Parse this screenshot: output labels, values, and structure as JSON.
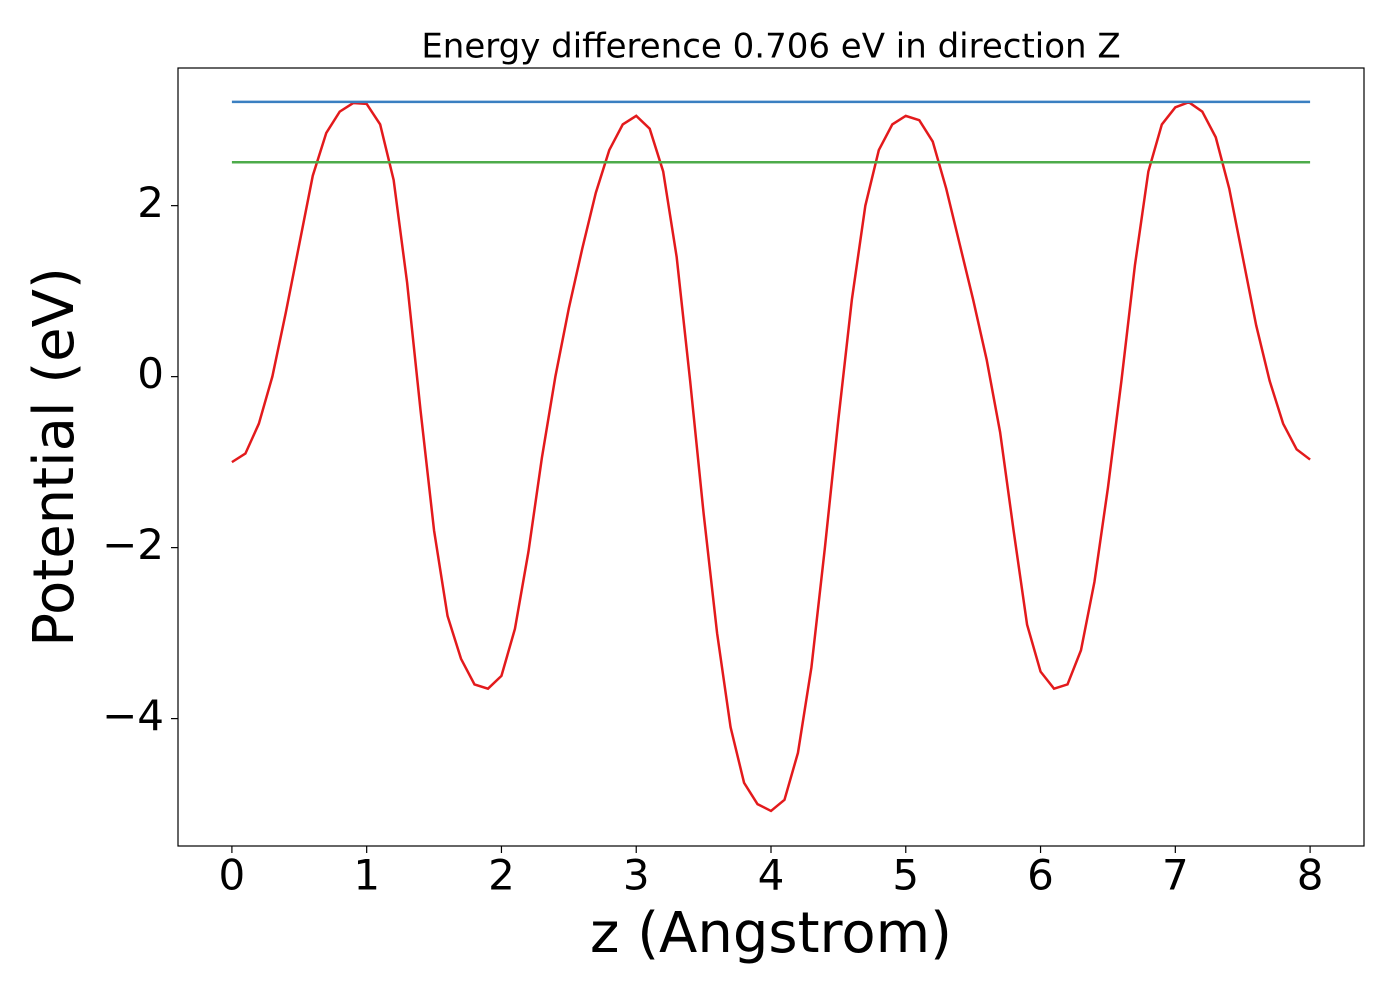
{
  "chart_data": {
    "type": "line",
    "title": "Energy difference 0.706 eV in direction Z",
    "x_label": "z (Angstrom)",
    "y_label": "Potential (eV)",
    "xlim": [
      -0.4,
      8.4
    ],
    "ylim": [
      -5.49,
      3.61
    ],
    "xticks": [
      0,
      1,
      2,
      3,
      4,
      5,
      6,
      7,
      8
    ],
    "yticks": [
      {
        "value": -4,
        "label": "−4"
      },
      {
        "value": -2,
        "label": "−2"
      },
      0,
      2
    ],
    "series": [
      {
        "color": "#e31a1c",
        "x": [
          0,
          0.1,
          0.2,
          0.3,
          0.4,
          0.5,
          0.6,
          0.7,
          0.8,
          0.9,
          1.0,
          1.1,
          1.2,
          1.3,
          1.4,
          1.5,
          1.6,
          1.7,
          1.8,
          1.9,
          2.0,
          2.1,
          2.2,
          2.3,
          2.4,
          2.5,
          2.6,
          2.7,
          2.8,
          2.9,
          3.0,
          3.1,
          3.2,
          3.3,
          3.4,
          3.5,
          3.6,
          3.7,
          3.8,
          3.9,
          4.0,
          4.1,
          4.2,
          4.3,
          4.4,
          4.5,
          4.6,
          4.7,
          4.8,
          4.9,
          5.0,
          5.1,
          5.2,
          5.3,
          5.4,
          5.5,
          5.6,
          5.7,
          5.8,
          5.9,
          6.0,
          6.1,
          6.2,
          6.3,
          6.4,
          6.5,
          6.6,
          6.7,
          6.8,
          6.9,
          7.0,
          7.1,
          7.2,
          7.3,
          7.4,
          7.5,
          7.6,
          7.7,
          7.8,
          7.9,
          8.0
        ],
        "values": [
          -1.0,
          -0.9,
          -0.55,
          0.0,
          0.75,
          1.55,
          2.35,
          2.85,
          3.1,
          3.2,
          3.19,
          2.95,
          2.3,
          1.1,
          -0.4,
          -1.8,
          -2.8,
          -3.3,
          -3.6,
          -3.65,
          -3.5,
          -2.95,
          -2.05,
          -0.95,
          0.0,
          0.8,
          1.5,
          2.15,
          2.65,
          2.95,
          3.05,
          2.9,
          2.4,
          1.4,
          -0.05,
          -1.6,
          -3.0,
          -4.1,
          -4.75,
          -5.0,
          -5.08,
          -4.95,
          -4.4,
          -3.4,
          -2.0,
          -0.5,
          0.9,
          2.0,
          2.65,
          2.95,
          3.05,
          3.0,
          2.75,
          2.2,
          1.55,
          0.9,
          0.2,
          -0.65,
          -1.8,
          -2.9,
          -3.45,
          -3.65,
          -3.6,
          -3.2,
          -2.4,
          -1.3,
          -0.05,
          1.3,
          2.4,
          2.95,
          3.15,
          3.21,
          3.1,
          2.8,
          2.2,
          1.4,
          0.6,
          -0.05,
          -0.55,
          -0.85,
          -0.97
        ]
      },
      {
        "color": "#3a7fc1",
        "x": [
          0,
          8
        ],
        "values": [
          3.214,
          3.214
        ]
      },
      {
        "color": "#4dab4a",
        "x": [
          0,
          8
        ],
        "values": [
          2.508,
          2.508
        ]
      }
    ]
  }
}
